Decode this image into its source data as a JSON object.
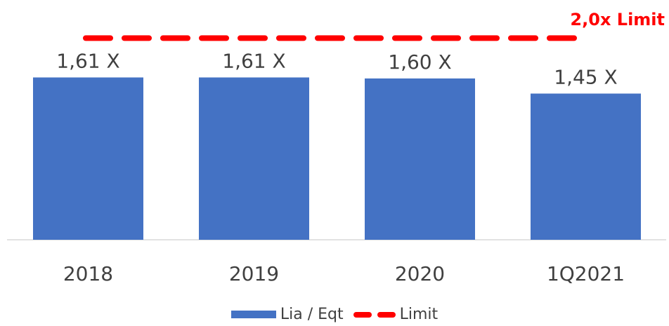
{
  "chart_data": {
    "type": "bar",
    "categories": [
      "2018",
      "2019",
      "2020",
      "1Q2021"
    ],
    "series": [
      {
        "name": "Lia / Eqt",
        "values": [
          1.61,
          1.61,
          1.6,
          1.45
        ],
        "color": "#4472c4"
      },
      {
        "name": "Limit",
        "type": "line",
        "style": "dashed",
        "value": 2.0,
        "color": "#ff0000"
      }
    ],
    "data_labels": [
      "1,61 X",
      "1,61 X",
      "1,60 X",
      "1,45 X"
    ],
    "limit_label": "2,0x Limit",
    "ylim": [
      0,
      2.1
    ],
    "grid": false,
    "legend_position": "bottom"
  }
}
